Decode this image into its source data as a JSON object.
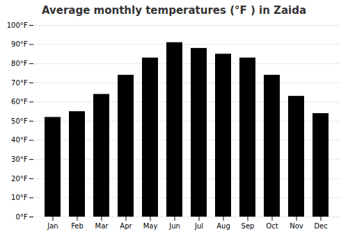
{
  "chart_data": {
    "type": "bar",
    "title": "Average monthly temperatures (°F ) in Zaida",
    "categories": [
      "Jan",
      "Feb",
      "Mar",
      "Apr",
      "May",
      "Jun",
      "Jul",
      "Aug",
      "Sep",
      "Oct",
      "Nov",
      "Dec"
    ],
    "values": [
      52,
      55,
      64,
      74,
      83,
      91,
      88,
      85,
      83,
      74,
      63,
      54
    ],
    "ylim": [
      0,
      100
    ],
    "yticks": [
      {
        "value": 0,
        "label": "0°F"
      },
      {
        "value": 10,
        "label": "10°F"
      },
      {
        "value": 20,
        "label": "20°F"
      },
      {
        "value": 30,
        "label": "30°F"
      },
      {
        "value": 40,
        "label": "40°F"
      },
      {
        "value": 50,
        "label": "50°F"
      },
      {
        "value": 60,
        "label": "60°F"
      },
      {
        "value": 70,
        "label": "70°F"
      },
      {
        "value": 80,
        "label": "80°F"
      },
      {
        "value": 90,
        "label": "90°F"
      },
      {
        "value": 100,
        "label": "100°F"
      }
    ],
    "grid": true
  }
}
